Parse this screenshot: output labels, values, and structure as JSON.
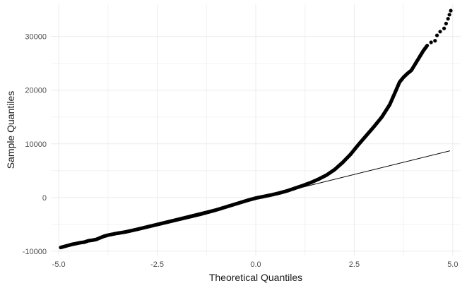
{
  "chart_data": {
    "type": "scatter",
    "title": "",
    "xlabel": "Theoretical Quantiles",
    "ylabel": "Sample Quantiles",
    "xlim": [
      -5.2,
      5.2
    ],
    "ylim": [
      -10800,
      36000
    ],
    "x_ticks": [
      -5.0,
      -2.5,
      0.0,
      2.5,
      5.0
    ],
    "x_tick_labels": [
      "-5.0",
      "-2.5",
      "0.0",
      "2.5",
      "5.0"
    ],
    "y_ticks": [
      -10000,
      0,
      10000,
      20000,
      30000
    ],
    "y_tick_labels": [
      "-10000",
      "0",
      "10000",
      "20000",
      "30000"
    ],
    "grid": true,
    "theme": "minimal",
    "point_color": "#000000",
    "line_color": "#000000",
    "reference_line": {
      "x": [
        -4.95,
        4.93
      ],
      "y": [
        -9200,
        8700
      ]
    },
    "sample_quantiles": [
      {
        "x": -4.95,
        "y": -9300
      },
      {
        "x": -4.78,
        "y": -8950
      },
      {
        "x": -4.65,
        "y": -8700
      },
      {
        "x": -4.55,
        "y": -8550
      },
      {
        "x": -4.45,
        "y": -8400
      },
      {
        "x": -4.35,
        "y": -8300
      },
      {
        "x": -4.25,
        "y": -8050
      },
      {
        "x": -4.15,
        "y": -7950
      },
      {
        "x": -4.05,
        "y": -7800
      },
      {
        "x": -3.95,
        "y": -7500
      },
      {
        "x": -3.85,
        "y": -7200
      },
      {
        "x": -3.75,
        "y": -7000
      },
      {
        "x": -3.65,
        "y": -6850
      },
      {
        "x": -3.55,
        "y": -6700
      },
      {
        "x": -3.45,
        "y": -6580
      },
      {
        "x": -3.3,
        "y": -6400
      },
      {
        "x": -3.15,
        "y": -6150
      },
      {
        "x": -3.0,
        "y": -5900
      },
      {
        "x": -2.8,
        "y": -5550
      },
      {
        "x": -2.6,
        "y": -5200
      },
      {
        "x": -2.4,
        "y": -4850
      },
      {
        "x": -2.2,
        "y": -4500
      },
      {
        "x": -2.0,
        "y": -4150
      },
      {
        "x": -1.8,
        "y": -3800
      },
      {
        "x": -1.6,
        "y": -3450
      },
      {
        "x": -1.4,
        "y": -3100
      },
      {
        "x": -1.2,
        "y": -2700
      },
      {
        "x": -1.0,
        "y": -2300
      },
      {
        "x": -0.8,
        "y": -1850
      },
      {
        "x": -0.6,
        "y": -1400
      },
      {
        "x": -0.4,
        "y": -950
      },
      {
        "x": -0.2,
        "y": -500
      },
      {
        "x": 0.0,
        "y": -100
      },
      {
        "x": 0.2,
        "y": 200
      },
      {
        "x": 0.4,
        "y": 500
      },
      {
        "x": 0.6,
        "y": 850
      },
      {
        "x": 0.8,
        "y": 1250
      },
      {
        "x": 1.0,
        "y": 1750
      },
      {
        "x": 1.2,
        "y": 2250
      },
      {
        "x": 1.4,
        "y": 2800
      },
      {
        "x": 1.6,
        "y": 3450
      },
      {
        "x": 1.8,
        "y": 4200
      },
      {
        "x": 2.0,
        "y": 5200
      },
      {
        "x": 2.2,
        "y": 6500
      },
      {
        "x": 2.4,
        "y": 8000
      },
      {
        "x": 2.6,
        "y": 9800
      },
      {
        "x": 2.8,
        "y": 11500
      },
      {
        "x": 3.0,
        "y": 13200
      },
      {
        "x": 3.2,
        "y": 15000
      },
      {
        "x": 3.4,
        "y": 17300
      },
      {
        "x": 3.55,
        "y": 19800
      },
      {
        "x": 3.65,
        "y": 21500
      },
      {
        "x": 3.75,
        "y": 22400
      },
      {
        "x": 3.85,
        "y": 23100
      },
      {
        "x": 3.95,
        "y": 23700
      },
      {
        "x": 4.05,
        "y": 24900
      },
      {
        "x": 4.15,
        "y": 26100
      },
      {
        "x": 4.25,
        "y": 27300
      },
      {
        "x": 4.35,
        "y": 28300
      },
      {
        "x": 4.45,
        "y": 28900
      },
      {
        "x": 4.55,
        "y": 29200
      },
      {
        "x": 4.6,
        "y": 30200
      },
      {
        "x": 4.68,
        "y": 30900
      },
      {
        "x": 4.78,
        "y": 31500
      },
      {
        "x": 4.88,
        "y": 33300
      },
      {
        "x": 4.95,
        "y": 34800
      }
    ]
  }
}
